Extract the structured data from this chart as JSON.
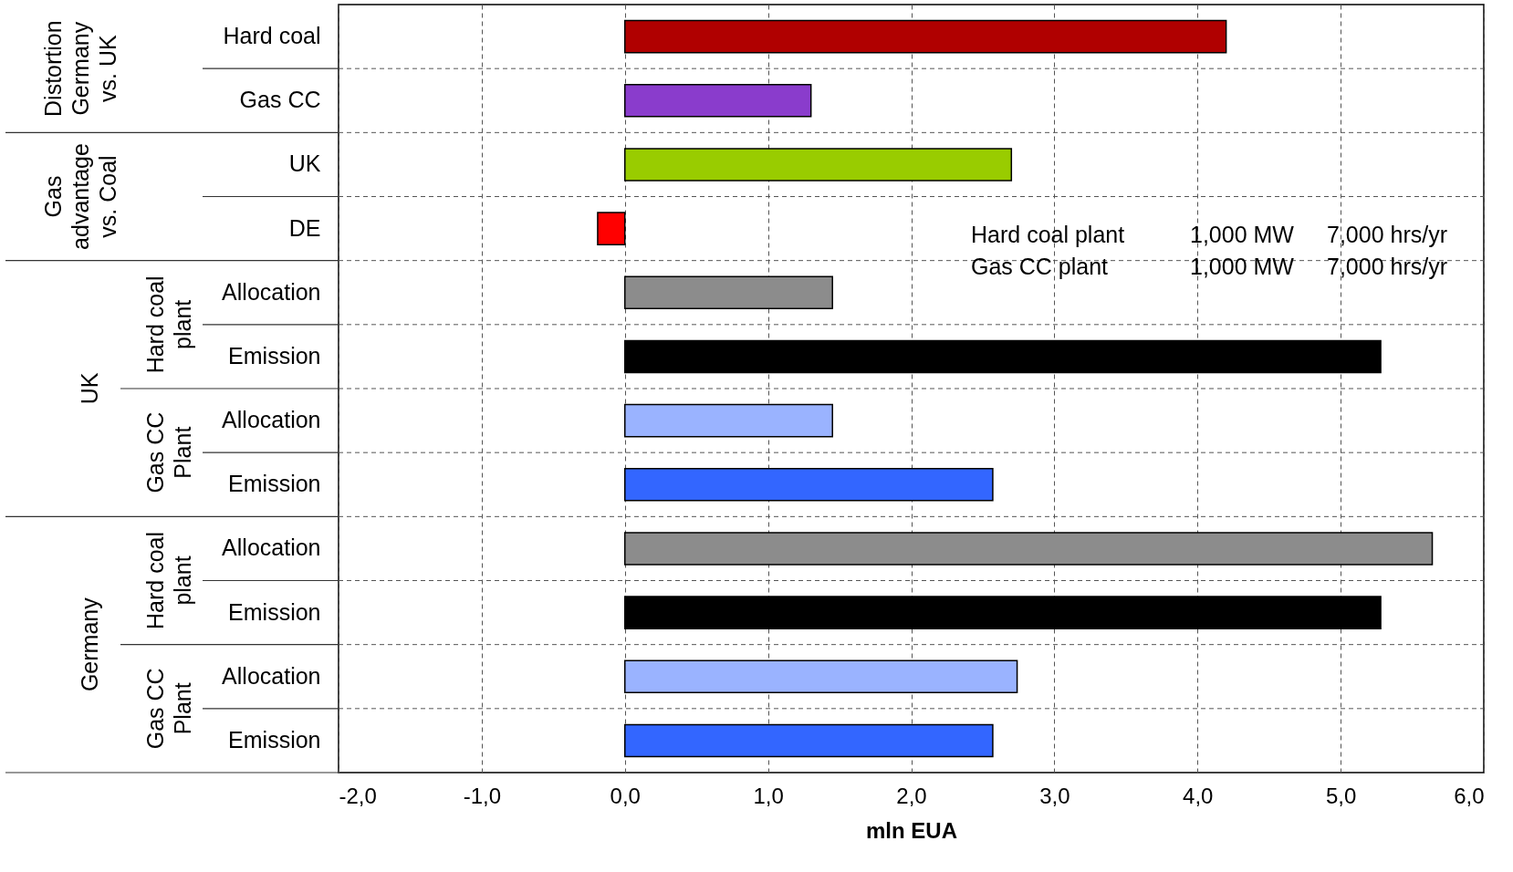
{
  "chart_data": {
    "type": "bar",
    "orientation": "horizontal",
    "xlabel": "mln EUA",
    "categories": [
      "Hard coal",
      "Gas CC",
      "UK",
      "DE",
      "Allocation",
      "Emission",
      "Allocation",
      "Emission",
      "Allocation",
      "Emission",
      "Allocation",
      "Emission"
    ],
    "values": [
      4.2,
      1.3,
      2.7,
      -0.19,
      1.45,
      5.28,
      1.45,
      2.57,
      5.64,
      5.28,
      2.74,
      2.57
    ],
    "colors": [
      "#b00000",
      "#8a3ccc",
      "#99cc00",
      "#ff0000",
      "#8c8c8c",
      "#000000",
      "#9ab3ff",
      "#3366ff",
      "#8c8c8c",
      "#000000",
      "#9ab3ff",
      "#3366ff"
    ],
    "xlim": [
      -2,
      6
    ],
    "xticks": [
      {
        "value": -2,
        "label": "-2,0"
      },
      {
        "value": -1,
        "label": "-1,0"
      },
      {
        "value": 0,
        "label": "0,0"
      },
      {
        "value": 1,
        "label": "1,0"
      },
      {
        "value": 2,
        "label": "2,0"
      },
      {
        "value": 3,
        "label": "3,0"
      },
      {
        "value": 4,
        "label": "4,0"
      },
      {
        "value": 5,
        "label": "5,0"
      },
      {
        "value": 6,
        "label": "6,0"
      }
    ],
    "grid": true,
    "annotations": [
      "Distortion Germany vs. UK",
      "Gas advantage vs. Coal",
      "UK",
      "Hard coal plant",
      "Gas CC Plant",
      "Germany",
      "Hard coal plant",
      "Gas CC Plant",
      "Hard coal plant  1,000 MW  7,000 hrs/yr",
      "Gas CC plant  1,000 MW  7,000 hrs/yr"
    ]
  }
}
